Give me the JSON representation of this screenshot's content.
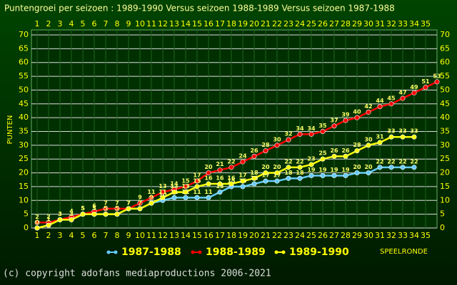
{
  "chart_data": {
    "type": "line",
    "title": "Puntengroei per seizoen : 1989-1990 Versus seizoen 1988-1989 Versus seizoen 1987-1988",
    "y_label": "PUNTEN",
    "x_label": "SPEELRONDE",
    "footer": "(c) copyright adofans mediaproductions 2006-2021",
    "x": [
      1,
      2,
      3,
      4,
      5,
      6,
      7,
      8,
      9,
      10,
      11,
      12,
      13,
      14,
      15,
      16,
      17,
      18,
      19,
      20,
      21,
      22,
      23,
      24,
      25,
      26,
      27,
      28,
      29,
      30,
      31,
      32,
      33,
      34,
      35,
      36
    ],
    "series": [
      {
        "name": "1987-1988",
        "color": "#66ccff",
        "values": [
          0,
          1,
          3,
          3,
          5,
          5,
          5,
          5,
          7,
          7,
          9,
          10,
          11,
          11,
          11,
          11,
          13,
          15,
          15,
          16,
          17,
          17,
          18,
          18,
          19,
          19,
          19,
          19,
          20,
          20,
          22,
          22,
          22,
          22,
          null,
          null
        ]
      },
      {
        "name": "1988-1989",
        "color": "#ff0000",
        "values": [
          2,
          2,
          3,
          4,
          5,
          6,
          7,
          7,
          7,
          9,
          11,
          13,
          14,
          15,
          17,
          20,
          21,
          22,
          24,
          26,
          28,
          30,
          32,
          34,
          34,
          35,
          37,
          39,
          40,
          42,
          44,
          45,
          47,
          49,
          51,
          53
        ]
      },
      {
        "name": "1989-1990",
        "color": "#ffff00",
        "values": [
          0,
          1,
          3,
          3,
          5,
          5,
          5,
          5,
          7,
          7,
          9,
          11,
          13,
          13,
          15,
          16,
          16,
          16,
          17,
          18,
          20,
          20,
          22,
          22,
          23,
          25,
          26,
          26,
          28,
          30,
          31,
          33,
          33,
          33,
          null,
          null
        ]
      }
    ],
    "xlim": [
      0.5,
      36
    ],
    "xticks": [
      1,
      2,
      3,
      4,
      5,
      6,
      7,
      8,
      9,
      10,
      11,
      12,
      13,
      14,
      15,
      16,
      17,
      18,
      19,
      20,
      21,
      22,
      23,
      24,
      25,
      26,
      27,
      28,
      29,
      30,
      31,
      32,
      33,
      34,
      35
    ],
    "ylim": [
      0,
      70
    ],
    "yticks": [
      0,
      5,
      10,
      15,
      20,
      25,
      30,
      35,
      40,
      45,
      50,
      55,
      60,
      65,
      70
    ],
    "grid": true
  }
}
